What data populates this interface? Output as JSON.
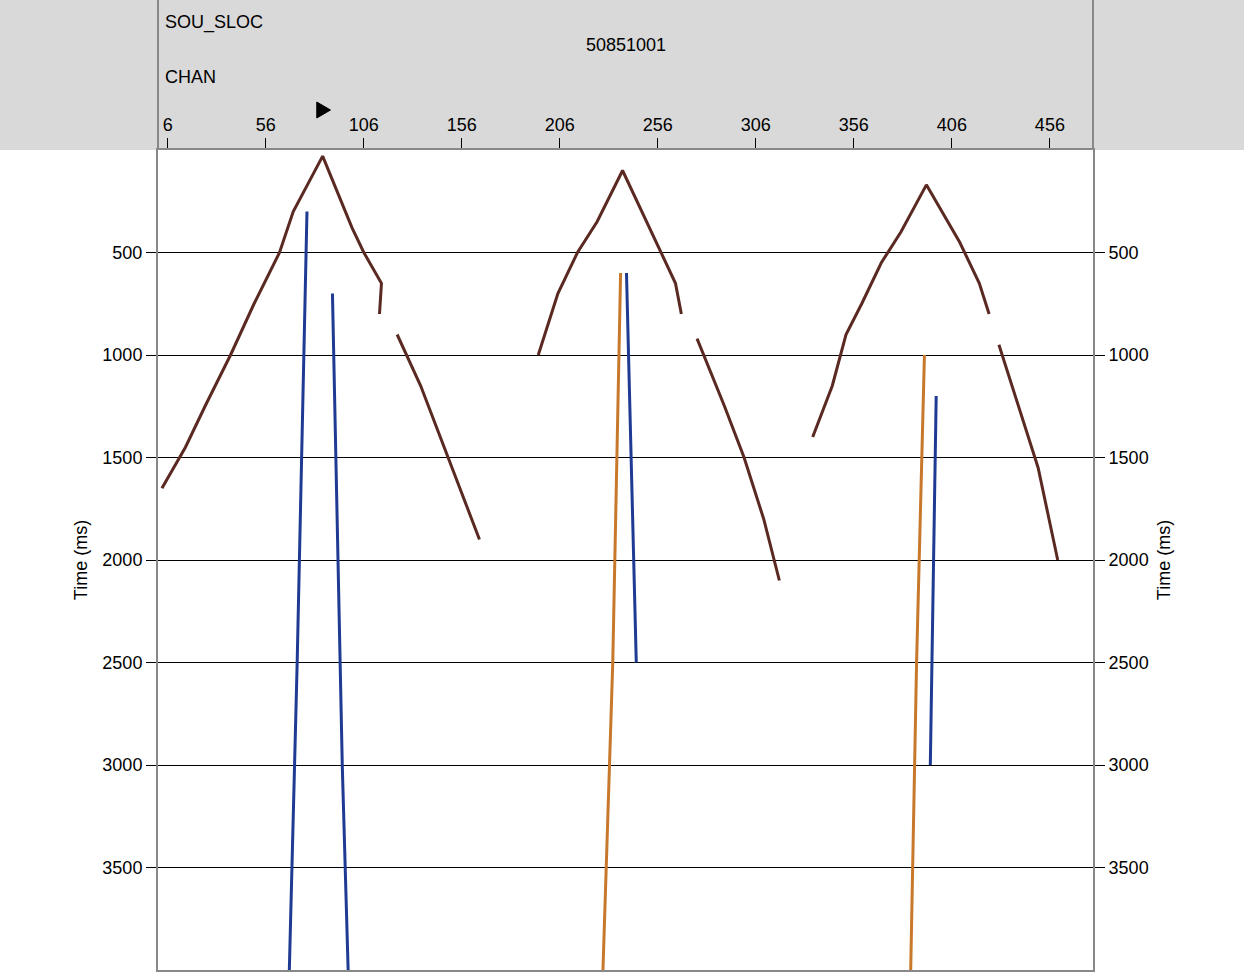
{
  "chart_data": {
    "type": "line",
    "annotations": [
      "SOU_SLOC",
      "50851001"
    ],
    "xlabel": "CHAN",
    "ylabel": "Time (ms)",
    "xlim": [
      1,
      478
    ],
    "xticks": [
      6,
      56,
      106,
      156,
      206,
      256,
      306,
      356,
      406,
      456
    ],
    "ylim": [
      0,
      4000
    ],
    "yticks": [
      500,
      1000,
      1500,
      2000,
      2500,
      3000,
      3500
    ],
    "grid": true,
    "source_channel": 85,
    "line_style": "solid",
    "series": [
      {
        "color": "#5a2a22",
        "x": [
          3,
          15,
          25,
          38,
          50,
          63,
          70,
          85,
          100,
          106,
          115,
          114
        ],
        "values": [
          1650,
          1450,
          1250,
          1000,
          750,
          500,
          300,
          30,
          380,
          500,
          650,
          800
        ]
      },
      {
        "color": "#5a2a22",
        "x": [
          123,
          135,
          145,
          155,
          165
        ],
        "values": [
          900,
          1150,
          1400,
          1650,
          1900
        ]
      },
      {
        "color": "#5a2a22",
        "x": [
          195,
          205,
          215,
          225,
          238,
          255,
          265,
          268
        ],
        "values": [
          1000,
          700,
          500,
          350,
          100,
          450,
          650,
          800
        ]
      },
      {
        "color": "#5a2a22",
        "x": [
          276,
          290,
          300,
          310,
          318
        ],
        "values": [
          920,
          1250,
          1500,
          1800,
          2100
        ]
      },
      {
        "color": "#5a2a22",
        "x": [
          335,
          345,
          352,
          360,
          370,
          380,
          393,
          410,
          420,
          425
        ],
        "values": [
          1400,
          1150,
          900,
          750,
          550,
          400,
          170,
          450,
          650,
          800
        ]
      },
      {
        "color": "#5a2a22",
        "x": [
          430,
          440,
          450,
          460
        ],
        "values": [
          950,
          1250,
          1550,
          2000
        ]
      },
      {
        "color": "#1f3a93",
        "x": [
          77,
          72,
          68
        ],
        "values": [
          300,
          2500,
          4000
        ]
      },
      {
        "color": "#1f3a93",
        "x": [
          90,
          95,
          98
        ],
        "values": [
          700,
          3000,
          4000
        ]
      },
      {
        "color": "#c8782a",
        "x": [
          237,
          233,
          228
        ],
        "values": [
          600,
          2500,
          4000
        ]
      },
      {
        "color": "#1f3a93",
        "x": [
          240,
          245
        ],
        "values": [
          600,
          2500
        ]
      },
      {
        "color": "#c8782a",
        "x": [
          392,
          388,
          385
        ],
        "values": [
          1000,
          2500,
          4000
        ]
      },
      {
        "color": "#1f3a93",
        "x": [
          398,
          395
        ],
        "values": [
          1200,
          3000
        ]
      }
    ]
  }
}
